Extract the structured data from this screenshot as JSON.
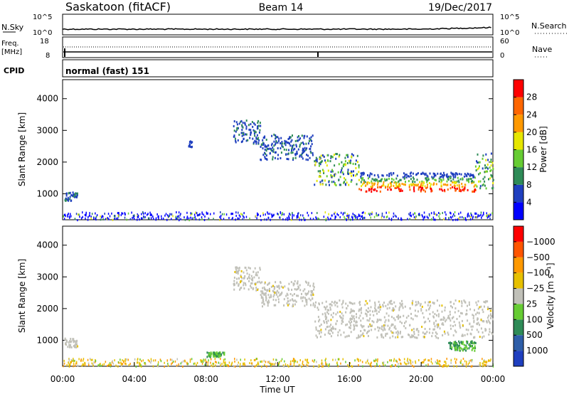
{
  "header": {
    "site": "Saskatoon (fitACF)",
    "beam": "Beam 14",
    "date": "19/Dec/2017"
  },
  "noise_panel": {
    "left_label": "N.Sky",
    "right_label": "N.Search",
    "left_ticks": [
      "10^5",
      "10^0"
    ],
    "right_ticks": [
      "10^5",
      "10^0"
    ]
  },
  "freq_panel": {
    "left_label_1": "Freq.",
    "left_label_2": "[MHz]",
    "right_label": "Nave",
    "left_ticks": [
      "18",
      "8"
    ],
    "right_ticks": [
      "60",
      "0"
    ]
  },
  "cpid_panel": {
    "label": "CPID",
    "mode_text": "normal (fast) 151"
  },
  "x_axis": {
    "label": "Time UT",
    "ticks": [
      "00:00",
      "04:00",
      "08:00",
      "12:00",
      "16:00",
      "20:00",
      "00:00"
    ]
  },
  "chart_data": [
    {
      "type": "heatmap",
      "title": "Power",
      "ylabel": "Slant Range [km]",
      "xlabel": "Time UT",
      "ylim": [
        180,
        4600
      ],
      "xlim_hours": [
        0,
        24
      ],
      "y_ticks": [
        1000,
        2000,
        3000,
        4000
      ],
      "colorbar": {
        "label": "Power [dB]",
        "ticks": [
          4,
          8,
          12,
          16,
          20,
          24,
          28
        ],
        "colors": [
          "#0000ff",
          "#1f3fbf",
          "#2e8b57",
          "#66cc33",
          "#e6e600",
          "#ff9900",
          "#ff6600",
          "#ff0000"
        ]
      },
      "echo_regions": [
        {
          "t_start": 0.1,
          "t_end": 0.8,
          "r_min": 800,
          "r_max": 1100,
          "level": "low"
        },
        {
          "t_start": 7.0,
          "t_end": 7.2,
          "r_min": 2500,
          "r_max": 2700,
          "level": "low"
        },
        {
          "t_start": 9.5,
          "t_end": 11.0,
          "r_min": 2600,
          "r_max": 3350,
          "level": "low"
        },
        {
          "t_start": 11.0,
          "t_end": 14.0,
          "r_min": 2100,
          "r_max": 2900,
          "level": "low"
        },
        {
          "t_start": 14.0,
          "t_end": 16.5,
          "r_min": 1300,
          "r_max": 2300,
          "level": "mixed"
        },
        {
          "t_start": 16.5,
          "t_end": 23.0,
          "r_min": 1100,
          "r_max": 1700,
          "level": "high"
        },
        {
          "t_start": 23.0,
          "t_end": 24.0,
          "r_min": 1200,
          "r_max": 2300,
          "level": "mixed"
        }
      ]
    },
    {
      "type": "heatmap",
      "title": "Velocity",
      "ylabel": "Slant Range [km]",
      "xlabel": "Time UT",
      "ylim": [
        180,
        4600
      ],
      "xlim_hours": [
        0,
        24
      ],
      "y_ticks": [
        1000,
        2000,
        3000,
        4000
      ],
      "colorbar": {
        "label": "Velocity [m s⁻¹]",
        "ticks": [
          "1000",
          "500",
          "100",
          "25",
          "−25",
          "−100",
          "−500",
          "−1000"
        ],
        "colors": [
          "#1f3fbf",
          "#2e5ea8",
          "#2e8b57",
          "#66cc33",
          "#c0c0b8",
          "#e6c000",
          "#ff9900",
          "#ff5500",
          "#ff0000"
        ]
      },
      "echo_regions": [
        {
          "t_start": 0.1,
          "t_end": 0.8,
          "r_min": 800,
          "r_max": 1100,
          "level": "ground"
        },
        {
          "t_start": 9.5,
          "t_end": 11.0,
          "r_min": 2600,
          "r_max": 3350,
          "level": "ground"
        },
        {
          "t_start": 11.0,
          "t_end": 14.0,
          "r_min": 2100,
          "r_max": 2900,
          "level": "ground"
        },
        {
          "t_start": 14.0,
          "t_end": 24.0,
          "r_min": 1100,
          "r_max": 2300,
          "level": "ground"
        },
        {
          "t_start": 8.0,
          "t_end": 9.0,
          "r_min": 500,
          "r_max": 650,
          "level": "positive"
        },
        {
          "t_start": 21.5,
          "t_end": 23.0,
          "r_min": 700,
          "r_max": 1000,
          "level": "positive"
        }
      ]
    }
  ]
}
